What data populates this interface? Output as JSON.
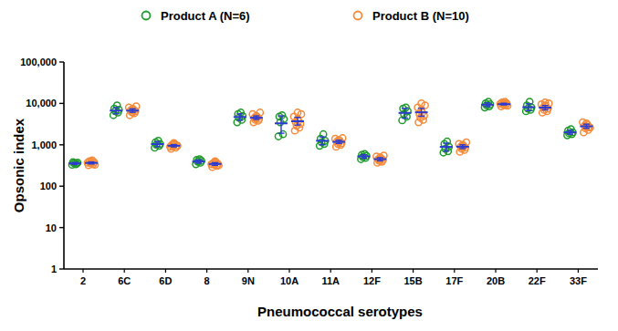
{
  "chart_data": {
    "type": "scatter",
    "x_label": "Pneumococcal serotypes",
    "y_label": "Opsonic index",
    "categories": [
      "2",
      "6C",
      "6D",
      "8",
      "9N",
      "10A",
      "11A",
      "12F",
      "15B",
      "17F",
      "20B",
      "22F",
      "33F"
    ],
    "log": "y",
    "ylim": [
      1,
      100000
    ],
    "yticks": [
      1,
      10,
      100,
      {
        "value": 1000,
        "label": "1,000"
      },
      {
        "value": 10000,
        "label": "10,000"
      },
      {
        "value": 100000,
        "label": "100,000"
      }
    ],
    "grid": false,
    "legend": "top",
    "series": [
      {
        "name": "Product A (N=6)",
        "color": "#1f9a2a",
        "marker": "circle",
        "values": [
          [
            330,
            350,
            360,
            370,
            380,
            340
          ],
          [
            5200,
            6000,
            6500,
            7000,
            7500,
            9000
          ],
          [
            850,
            950,
            1000,
            1050,
            1150,
            1250
          ],
          [
            340,
            370,
            390,
            410,
            430,
            450
          ],
          [
            3500,
            4000,
            4500,
            5000,
            5500,
            6000
          ],
          [
            1600,
            1800,
            3500,
            4200,
            4800,
            5200
          ],
          [
            950,
            1050,
            1150,
            1250,
            1400,
            1800
          ],
          [
            450,
            480,
            510,
            540,
            570,
            600
          ],
          [
            3900,
            4800,
            5500,
            6500,
            7500,
            8000
          ],
          [
            650,
            700,
            800,
            900,
            1050,
            1200
          ],
          [
            8000,
            8500,
            9000,
            9500,
            10000,
            11000
          ],
          [
            6500,
            7000,
            7500,
            8000,
            9000,
            11000
          ],
          [
            1700,
            1800,
            1900,
            2000,
            2200,
            2400
          ]
        ],
        "means": [
          355,
          6700,
          1040,
          395,
          4700,
          3300,
          1250,
          525,
          5900,
          890,
          9300,
          8100,
          2000
        ],
        "lower": [
          335,
          5600,
          900,
          360,
          3900,
          1900,
          1000,
          470,
          4400,
          700,
          8400,
          6700,
          1800
        ],
        "upper": [
          375,
          7900,
          1200,
          430,
          5600,
          5000,
          1550,
          580,
          7600,
          1100,
          10300,
          9800,
          2250
        ]
      },
      {
        "name": "Product B (N=10)",
        "color": "#f58a3a",
        "marker": "circle",
        "values": [
          [
            320,
            340,
            360,
            380,
            400,
            420,
            350,
            370,
            330,
            390
          ],
          [
            5200,
            5800,
            6200,
            6500,
            6800,
            7000,
            7500,
            8000,
            8500,
            6000
          ],
          [
            800,
            850,
            900,
            950,
            1000,
            1050,
            1000,
            900,
            950,
            1100
          ],
          [
            290,
            310,
            330,
            350,
            360,
            380,
            400,
            340,
            320,
            370
          ],
          [
            3500,
            3800,
            4000,
            4200,
            4500,
            4700,
            5000,
            5500,
            6000,
            4300
          ],
          [
            2200,
            2600,
            2900,
            3200,
            3500,
            3800,
            4200,
            4800,
            5500,
            6000
          ],
          [
            900,
            1000,
            1050,
            1100,
            1200,
            1250,
            1300,
            1400,
            1450,
            1150
          ],
          [
            370,
            390,
            410,
            430,
            450,
            470,
            500,
            520,
            550,
            420
          ],
          [
            3500,
            4000,
            4500,
            5000,
            5500,
            6000,
            7000,
            8000,
            9000,
            10000
          ],
          [
            680,
            750,
            800,
            850,
            900,
            950,
            1000,
            1050,
            1150,
            880
          ],
          [
            8500,
            9000,
            9500,
            10000,
            10500,
            11000,
            9200,
            9800,
            8800,
            10200
          ],
          [
            6000,
            6500,
            7000,
            7500,
            8000,
            8500,
            9000,
            9500,
            10000,
            10500
          ],
          [
            2000,
            2300,
            2500,
            2700,
            2900,
            3100,
            3300,
            3500,
            2600,
            2800
          ]
        ],
        "means": [
          365,
          6700,
          950,
          345,
          4500,
          3700,
          1180,
          450,
          6100,
          900,
          9600,
          7900,
          2800
        ],
        "lower": [
          345,
          6100,
          890,
          320,
          4100,
          3000,
          1080,
          410,
          4900,
          810,
          9200,
          7000,
          2500
        ],
        "upper": [
          385,
          7400,
          1010,
          370,
          5000,
          4600,
          1290,
          490,
          7600,
          1000,
          10100,
          8900,
          3150
        ]
      }
    ]
  }
}
